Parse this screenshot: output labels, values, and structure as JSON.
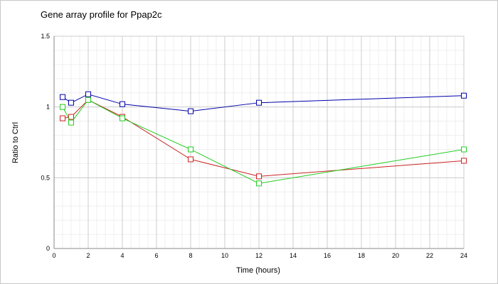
{
  "chart_data": {
    "type": "line",
    "title": "Gene array profile for Ppap2c",
    "xlabel": "Time (hours)",
    "ylabel": "Ratio to Ctrl",
    "xlim": [
      0,
      24
    ],
    "ylim": [
      0,
      1.5
    ],
    "x_ticks": [
      0,
      2,
      4,
      6,
      8,
      10,
      12,
      14,
      16,
      18,
      20,
      22,
      24
    ],
    "y_ticks": [
      0,
      0.5,
      1,
      1.5
    ],
    "grid": true,
    "legend": "none",
    "series": [
      {
        "color": "#0000aa",
        "x": [
          0.5,
          1,
          2,
          4,
          8,
          12,
          24
        ],
        "values": [
          1.07,
          1.03,
          1.09,
          1.02,
          0.97,
          1.03,
          1.08
        ]
      },
      {
        "color": "#cc2222",
        "x": [
          0.5,
          1,
          2,
          4,
          8,
          12,
          24
        ],
        "values": [
          0.92,
          0.93,
          1.05,
          0.93,
          0.63,
          0.51,
          0.62
        ]
      },
      {
        "color": "#22cc22",
        "x": [
          0.5,
          1,
          2,
          4,
          8,
          12,
          24
        ],
        "values": [
          1.0,
          0.89,
          1.05,
          0.92,
          0.7,
          0.46,
          0.7
        ]
      }
    ]
  }
}
